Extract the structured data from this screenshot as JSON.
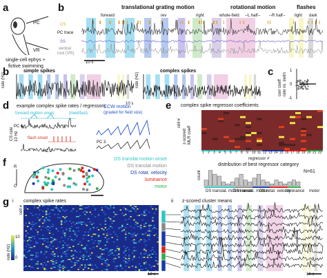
{
  "panels": {
    "a": {
      "letter": "a",
      "pc_label": "PC",
      "vr_label": "VR",
      "caption_line1": "single-cell ephys +",
      "caption_line2": "fictive swimming"
    },
    "b": {
      "letter": "b",
      "headers": {
        "translational": "translational grating motion",
        "rotational": "rotational motion",
        "flashes": "flashes"
      },
      "stim_labels": {
        "forward": "forward",
        "rev": "rev",
        "right": "right",
        "whole_field": "whole-field",
        "l_half": "--L half--",
        "r_half": "--R half--",
        "light": "light",
        "dark": "dark"
      },
      "trace_labels": {
        "cs": "CS",
        "pc_trace": "PC trace",
        "ss": "SS",
        "ventral_root": "ventral",
        "ventral_root2": "root (VR)"
      },
      "scale": "10 s"
    },
    "b2": {
      "letter": "b",
      "simple_title": "simple spikes",
      "complex_title": "complex spikes",
      "ylabel": "rate (Hz)",
      "scale": "10 s"
    },
    "c": {
      "letter": "c",
      "ylabel1": "corr coeff",
      "ylabel2": "rate vs. swim",
      "tick_top": "1",
      "tick_mid": "0",
      "tick_bot": "-1"
    },
    "d": {
      "letter": "d",
      "title": "example complex spike rates / regressors",
      "forward_label": "forward motion onset",
      "forward_sub": "(med/fast)",
      "pc1": "PC 1",
      "cs_rate": "CS rate",
      "cs_rate_unit": "10 Hz",
      "flash_label": "flash onset",
      "pc2": "PC 2",
      "ccw_label": "CCW motion",
      "ccw_sub": "(graded for field size)",
      "pc3": "PC 3"
    },
    "e": {
      "letter": "e",
      "title": "complex spike regressor coefficients",
      "ylabel": "cell #",
      "scale_label1": "z-scored",
      "scale_label2": "MLR coeff",
      "xlabel": "regressor #",
      "xticks": [
        "1",
        "2",
        "3",
        "4",
        "5",
        "6",
        "7",
        "8",
        "9",
        "10",
        "11",
        "12",
        "13",
        "14",
        "15",
        "16",
        "17",
        "18",
        "19",
        "20",
        "21",
        "22"
      ],
      "hist_title": "distribution of best regressor category",
      "hist_ylabel": "count",
      "hist_n": "N=61",
      "categories": [
        "DS translat. motion onset",
        "DS translat. motion",
        "DS rotat. velocity",
        "luminance",
        "motor"
      ]
    },
    "f": {
      "letter": "f",
      "r_label": "R",
      "c_label": "C",
      "legend": [
        {
          "text": "DS translat motion onset",
          "color": "#33c4c4"
        },
        {
          "text": "DS translat motion",
          "color": "#8a8a8a"
        },
        {
          "text": "DS rotat. velocity",
          "color": "#1a3aa8"
        },
        {
          "text": "luminance",
          "color": "#e0201a"
        },
        {
          "text": "motor",
          "color": "#2eb04a"
        }
      ]
    },
    "g": {
      "letter": "g",
      "sub_i": "i",
      "title_i": "complex spike rates",
      "ylabel_i": "cell #",
      "cbar_label": "rate (Hz)",
      "cbar_ticks": [
        "10",
        "0"
      ],
      "scale_i": "10 s",
      "sub_ii": "ii",
      "title_ii": "z-scored cluster means",
      "scale_ii": "10 s"
    }
  },
  "colors": {
    "forward": "#5fc5e8",
    "rev": "#7a9de0",
    "right": "#9b8fe0",
    "whole": "#a8d8a0",
    "lhalf": "#b8a8d8",
    "rhalf": "#e6a9cf",
    "light": "#f0ee9a",
    "dark": "#b8b8b8",
    "cs": "#e0a030",
    "ss": "#6a5fd0",
    "vr": "#888888"
  }
}
